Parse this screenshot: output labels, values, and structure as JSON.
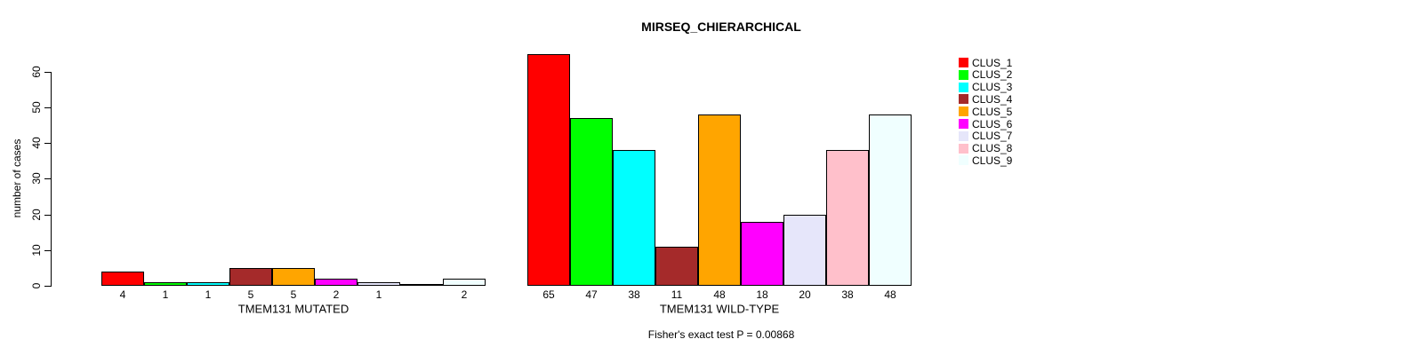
{
  "chart_data": {
    "type": "bar",
    "title": "MIRSEQ_CHIERARCHICAL",
    "ylabel": "number of cases",
    "xlabel": "",
    "footnote": "Fisher's exact test P = 0.00868",
    "ylim": [
      0,
      60
    ],
    "yticks": [
      0,
      10,
      20,
      30,
      40,
      50,
      60
    ],
    "grid": false,
    "legend_position": "top-right",
    "legend": [
      {
        "label": "CLUS_1",
        "color": "#FF0000"
      },
      {
        "label": "CLUS_2",
        "color": "#00FF00"
      },
      {
        "label": "CLUS_3",
        "color": "#00FFFF"
      },
      {
        "label": "CLUS_4",
        "color": "#A52A2A"
      },
      {
        "label": "CLUS_5",
        "color": "#FFA500"
      },
      {
        "label": "CLUS_6",
        "color": "#FF00FF"
      },
      {
        "label": "CLUS_7",
        "color": "#E6E6FA"
      },
      {
        "label": "CLUS_8",
        "color": "#FFC0CB"
      },
      {
        "label": "CLUS_9",
        "color": "#F0FFFF"
      }
    ],
    "groups": [
      {
        "label": "TMEM131 MUTATED",
        "values": [
          4,
          1,
          1,
          5,
          5,
          2,
          1,
          0,
          2
        ],
        "bar_labels": [
          "4",
          "1",
          "1",
          "5",
          "5",
          "2",
          "1",
          "",
          "2"
        ]
      },
      {
        "label": "TMEM131 WILD-TYPE",
        "values": [
          65,
          47,
          38,
          11,
          48,
          18,
          20,
          38,
          48
        ],
        "bar_labels": [
          "65",
          "47",
          "38",
          "11",
          "48",
          "18",
          "20",
          "38",
          "48"
        ]
      }
    ]
  }
}
